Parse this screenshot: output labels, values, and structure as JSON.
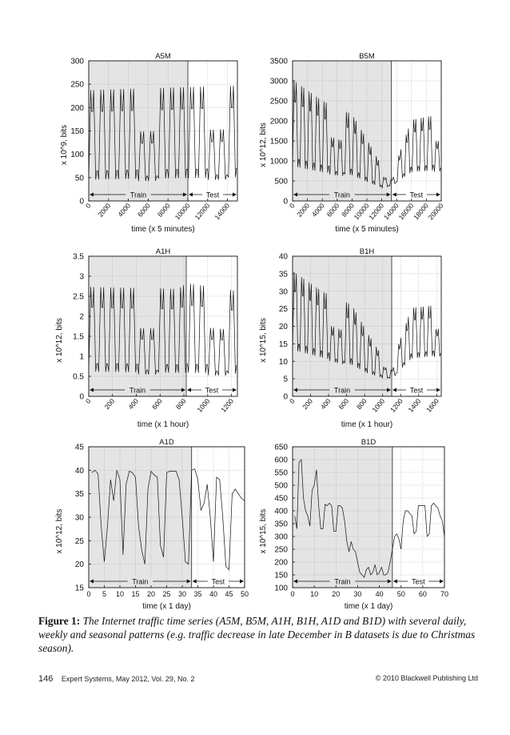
{
  "caption": {
    "label": "Figure 1:",
    "text": "The Internet traffic time series (A5M, B5M, A1H, B1H, A1D and B1D) with several daily, weekly and seasonal patterns (e.g. traffic decrease in late December in B datasets is due to Christmas season)."
  },
  "footer": {
    "page_number": "146",
    "journal": "Expert Systems, May 2012, Vol. 29, No. 2",
    "copyright": "© 2010 Blackwell Publishing Ltd"
  },
  "chart_data": [
    {
      "id": "A5M",
      "type": "line",
      "title": "A5M",
      "xlabel": "time (x 5 minutes)",
      "ylabel": "x 10^9, bits",
      "xlim": [
        0,
        15000
      ],
      "ylim": [
        0,
        300
      ],
      "xticks": [
        0,
        2000,
        4000,
        6000,
        8000,
        10000,
        12000,
        14000
      ],
      "yticks": [
        0,
        50,
        100,
        150,
        200,
        250,
        300
      ],
      "x_rotated": true,
      "grid": true,
      "train_end": 10000,
      "train_label": "Train",
      "test_label": "Test",
      "pattern": {
        "kind": "oscillating",
        "n_points": 150,
        "period": 10,
        "peak": [
          [
            0,
            248
          ],
          [
            1,
            258
          ]
        ],
        "trough": [
          [
            0,
            35
          ],
          [
            1,
            40
          ]
        ]
      }
    },
    {
      "id": "B5M",
      "type": "line",
      "title": "B5M",
      "xlabel": "time (x 5 minutes)",
      "ylabel": "x 10^12, bits",
      "xlim": [
        0,
        20000
      ],
      "ylim": [
        0,
        3500
      ],
      "xticks": [
        0,
        2000,
        4000,
        6000,
        8000,
        10000,
        12000,
        14000,
        16000,
        18000,
        20000
      ],
      "yticks": [
        0,
        500,
        1000,
        1500,
        2000,
        2500,
        3000,
        3500
      ],
      "x_rotated": true,
      "grid": true,
      "train_end": 13300,
      "train_label": "Train",
      "test_label": "Test",
      "pattern": {
        "kind": "oscillating",
        "n_points": 200,
        "period": 10,
        "peak": [
          [
            0,
            3150
          ],
          [
            0.2,
            2600
          ],
          [
            0.4,
            2250
          ],
          [
            0.5,
            1600
          ],
          [
            0.6,
            900
          ],
          [
            0.67,
            700
          ],
          [
            0.8,
            2100
          ],
          [
            1,
            2250
          ]
        ],
        "trough": [
          [
            0,
            750
          ],
          [
            0.2,
            620
          ],
          [
            0.4,
            560
          ],
          [
            0.5,
            420
          ],
          [
            0.6,
            300
          ],
          [
            0.67,
            380
          ],
          [
            0.8,
            650
          ],
          [
            1,
            700
          ]
        ]
      }
    },
    {
      "id": "A1H",
      "type": "line",
      "title": "A1H",
      "xlabel": "time (x 1 hour)",
      "ylabel": "x 10^12, bits",
      "xlim": [
        0,
        1250
      ],
      "ylim": [
        0,
        3.5
      ],
      "xticks": [
        0,
        200,
        400,
        600,
        800,
        1000,
        1200
      ],
      "yticks": [
        0,
        0.5,
        1,
        1.5,
        2,
        2.5,
        3,
        3.5
      ],
      "x_rotated": true,
      "grid": true,
      "train_end": 820,
      "train_label": "Train",
      "test_label": "Test",
      "pattern": {
        "kind": "oscillating",
        "n_points": 150,
        "period": 10,
        "peak": [
          [
            0,
            2.85
          ],
          [
            0.6,
            2.8
          ],
          [
            0.66,
            2.95
          ],
          [
            1,
            2.75
          ]
        ],
        "trough": [
          [
            0,
            0.5
          ],
          [
            1,
            0.45
          ]
        ]
      }
    },
    {
      "id": "B1H",
      "type": "line",
      "title": "B1H",
      "xlabel": "time (x 1 hour)",
      "ylabel": "x 10^15, bits",
      "xlim": [
        0,
        1650
      ],
      "ylim": [
        0,
        40
      ],
      "xticks": [
        0,
        200,
        400,
        600,
        800,
        1000,
        1200,
        1400,
        1600
      ],
      "yticks": [
        0,
        5,
        10,
        15,
        20,
        25,
        30,
        35,
        40
      ],
      "x_rotated": true,
      "grid": true,
      "train_end": 1100,
      "train_label": "Train",
      "test_label": "Test",
      "pattern": {
        "kind": "oscillating",
        "n_points": 200,
        "period": 10,
        "peak": [
          [
            0,
            37
          ],
          [
            0.2,
            31
          ],
          [
            0.4,
            27
          ],
          [
            0.5,
            19
          ],
          [
            0.6,
            12
          ],
          [
            0.67,
            10
          ],
          [
            0.8,
            26
          ],
          [
            1,
            27
          ]
        ],
        "trough": [
          [
            0,
            12
          ],
          [
            0.2,
            10
          ],
          [
            0.4,
            8
          ],
          [
            0.5,
            6
          ],
          [
            0.6,
            5
          ],
          [
            0.67,
            5
          ],
          [
            0.8,
            10
          ],
          [
            1,
            11
          ]
        ]
      }
    },
    {
      "id": "A1D",
      "type": "line",
      "title": "A1D",
      "xlabel": "time (x 1 day)",
      "ylabel": "x 10^12, bits",
      "xlim": [
        0,
        50
      ],
      "ylim": [
        15,
        45
      ],
      "xticks": [
        0,
        5,
        10,
        15,
        20,
        25,
        30,
        35,
        40,
        45,
        50
      ],
      "yticks": [
        15,
        20,
        25,
        30,
        35,
        40,
        45
      ],
      "x_rotated": false,
      "grid": true,
      "train_end": 33,
      "train_label": "Train",
      "test_label": "Test",
      "x": [
        1,
        2,
        3,
        4,
        5,
        6,
        7,
        8,
        9,
        10,
        11,
        12,
        13,
        14,
        15,
        16,
        17,
        18,
        19,
        20,
        21,
        22,
        23,
        24,
        25,
        26,
        27,
        28,
        29,
        30,
        31,
        32,
        33,
        34,
        35,
        36,
        37,
        38,
        39,
        40,
        41,
        42,
        43,
        44,
        45,
        46,
        47,
        48,
        49,
        50
      ],
      "values": [
        39.5,
        40,
        39.2,
        28,
        20.5,
        28,
        38,
        33.5,
        40,
        38,
        22,
        37,
        39.8,
        39.5,
        38.5,
        28,
        23,
        20,
        36,
        39.8,
        39,
        38.5,
        24,
        21.5,
        39.5,
        39.8,
        39.8,
        39.8,
        38,
        30,
        20.5,
        20,
        40,
        40.3,
        38,
        31.5,
        33,
        37,
        30,
        20.5,
        38.5,
        38,
        30,
        19.5,
        18.8,
        35,
        36,
        35,
        34,
        33.5
      ]
    },
    {
      "id": "B1D",
      "type": "line",
      "title": "B1D",
      "xlabel": "time (x 1 day)",
      "ylabel": "x 10^15, bits",
      "xlim": [
        0,
        70
      ],
      "ylim": [
        100,
        650
      ],
      "xticks": [
        0,
        10,
        20,
        30,
        40,
        50,
        60,
        70
      ],
      "yticks": [
        100,
        150,
        200,
        250,
        300,
        350,
        400,
        450,
        500,
        550,
        600,
        650
      ],
      "x_rotated": false,
      "grid": true,
      "train_end": 46,
      "train_label": "Train",
      "test_label": "Test",
      "x": [
        1,
        2,
        3,
        4,
        5,
        6,
        7,
        8,
        9,
        10,
        11,
        12,
        13,
        14,
        15,
        16,
        17,
        18,
        19,
        20,
        21,
        22,
        23,
        24,
        25,
        26,
        27,
        28,
        29,
        30,
        31,
        32,
        33,
        34,
        35,
        36,
        37,
        38,
        39,
        40,
        41,
        42,
        43,
        44,
        45,
        46,
        47,
        48,
        49,
        50,
        51,
        52,
        53,
        54,
        55,
        56,
        57,
        58,
        59,
        60,
        61,
        62,
        63,
        64,
        65,
        66,
        67,
        68,
        69,
        70
      ],
      "values": [
        380,
        330,
        590,
        600,
        450,
        400,
        380,
        340,
        480,
        500,
        560,
        420,
        330,
        330,
        425,
        420,
        430,
        420,
        320,
        320,
        420,
        420,
        410,
        360,
        280,
        240,
        280,
        250,
        240,
        200,
        160,
        150,
        140,
        170,
        180,
        150,
        160,
        190,
        150,
        160,
        180,
        150,
        150,
        160,
        200,
        250,
        300,
        310,
        290,
        250,
        360,
        400,
        400,
        390,
        380,
        310,
        320,
        420,
        420,
        420,
        420,
        300,
        310,
        420,
        430,
        420,
        410,
        380,
        360,
        300
      ]
    }
  ]
}
